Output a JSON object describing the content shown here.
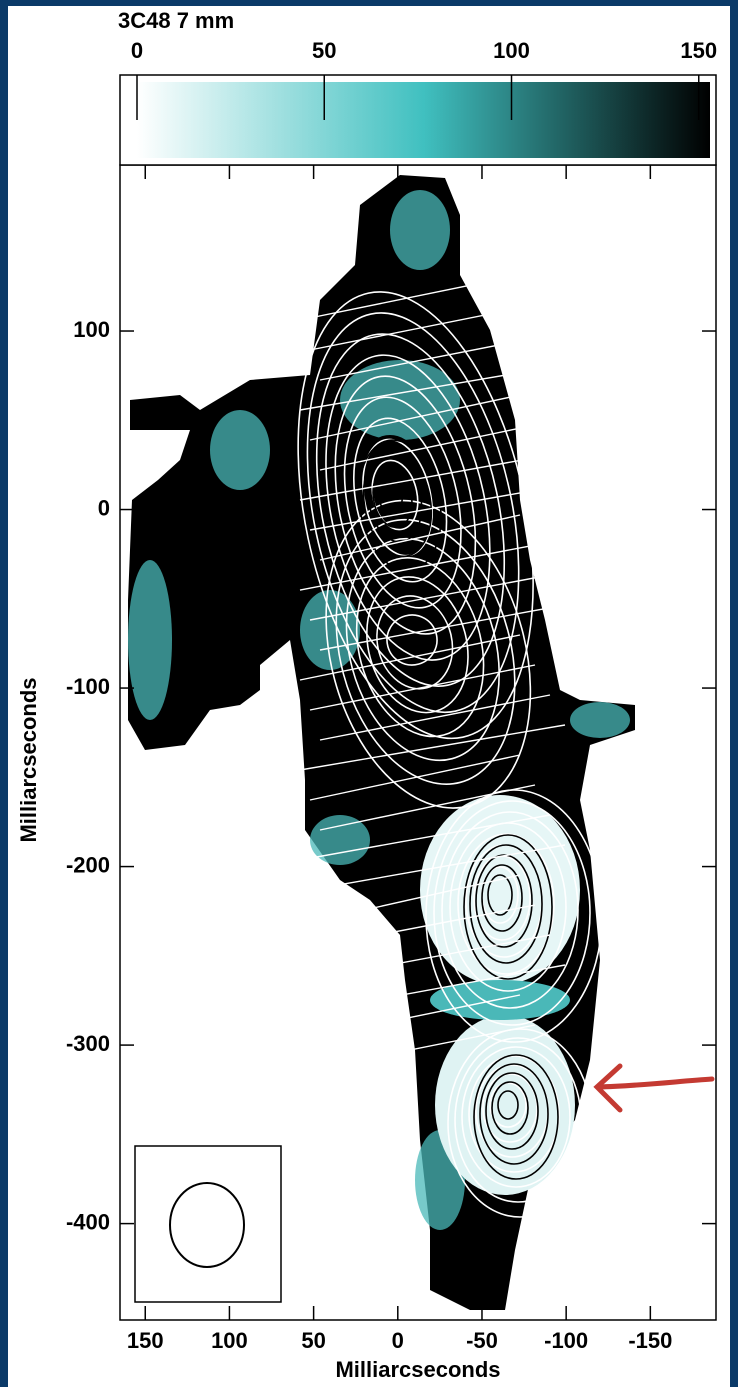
{
  "chart_data": {
    "type": "image",
    "title": "3C48 7 mm",
    "colorbar": {
      "lim": [
        0,
        153
      ],
      "ticks": [
        0,
        50,
        100,
        150
      ],
      "colors": [
        "#ffffff",
        "#40c0c0",
        "#000000"
      ]
    },
    "xlabel": "Milliarcseconds",
    "ylabel": "Milliarcseconds",
    "xlim": [
      165,
      -189
    ],
    "ylim": [
      -454,
      193
    ],
    "xticks": [
      150,
      100,
      50,
      0,
      -50,
      -100,
      -150
    ],
    "yticks": [
      100,
      0,
      -100,
      -200,
      -300,
      -400
    ]
  }
}
